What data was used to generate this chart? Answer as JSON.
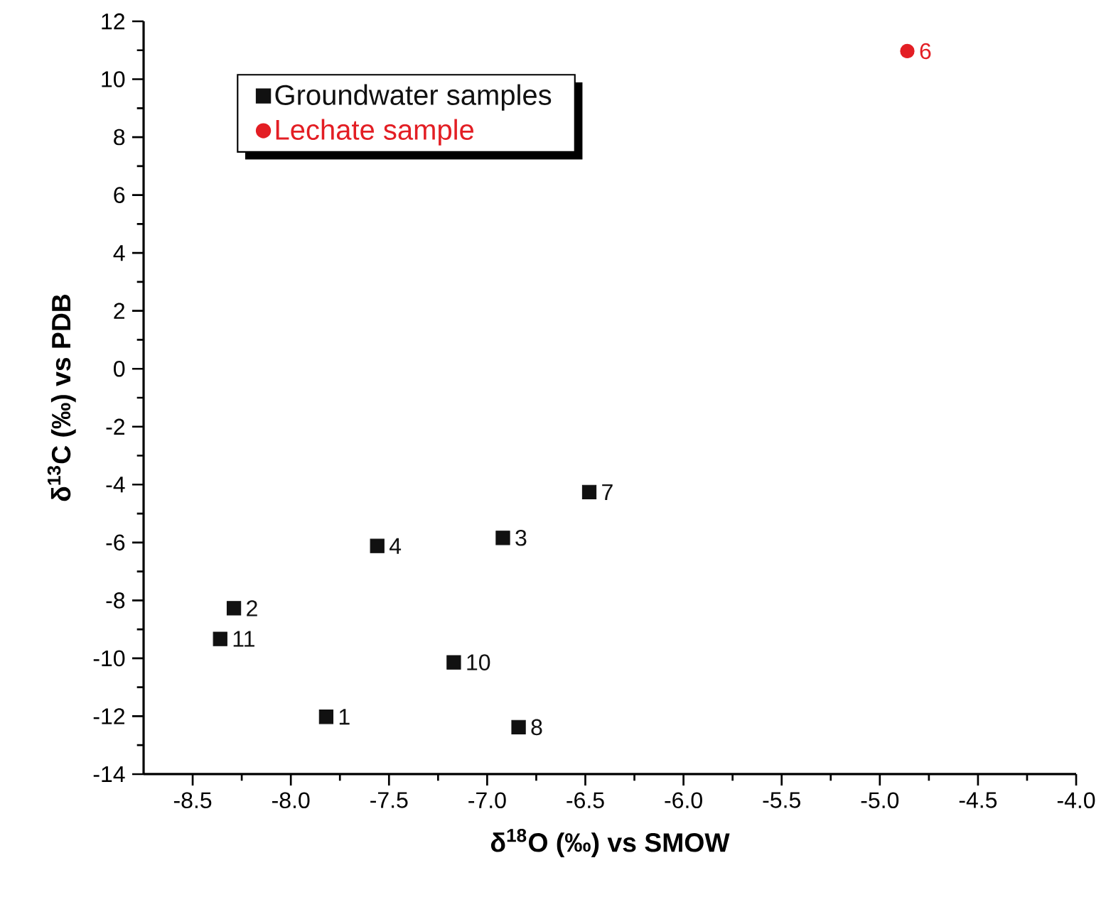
{
  "chart_data": {
    "type": "scatter",
    "xlabel": "δ$^{18}$O (‰) vs SMOW",
    "ylabel": "δ$^{13}$C (‰) vs  PDB",
    "series": [
      {
        "name": "Groundwater samples",
        "color": "#111111",
        "marker": "square",
        "x": [
          -7.82,
          -8.29,
          -6.92,
          -7.56,
          -6.48,
          -6.84,
          -7.17,
          -8.36
        ],
        "values": [
          -12.02,
          -8.27,
          -5.84,
          -6.12,
          -4.26,
          -12.38,
          -10.14,
          -9.33
        ]
      },
      {
        "name": "Lechate sample",
        "color": "#e31e24",
        "marker": "circle",
        "x": [
          -4.86
        ],
        "values": [
          10.97
        ]
      }
    ],
    "annotations": [
      {
        "text": "1",
        "x": -7.82,
        "y": -12.02
      },
      {
        "text": "2",
        "x": -8.29,
        "y": -8.27
      },
      {
        "text": "3",
        "x": -6.92,
        "y": -5.84
      },
      {
        "text": "4",
        "x": -7.56,
        "y": -6.12
      },
      {
        "text": "6",
        "x": -4.86,
        "y": 10.97
      },
      {
        "text": "7",
        "x": -6.48,
        "y": -4.26
      },
      {
        "text": "8",
        "x": -6.84,
        "y": -12.38
      },
      {
        "text": "10",
        "x": -7.17,
        "y": -10.14
      },
      {
        "text": "11",
        "x": -8.36,
        "y": -9.33
      }
    ],
    "xlim": [
      -8.75,
      -4.0
    ],
    "xticks": [
      -8.5,
      {
        "value": -8.0,
        "label": "-8.0"
      },
      -7.5,
      {
        "value": -7.0,
        "label": "-7.0"
      },
      -6.5,
      {
        "value": -6.0,
        "label": "-6.0"
      },
      -5.5,
      {
        "value": -5.0,
        "label": "-5.0"
      },
      -4.5,
      {
        "value": -4.0,
        "label": "-4.0"
      }
    ],
    "ylim": [
      -14,
      12
    ],
    "yticks": [
      -14,
      -12,
      -10,
      -8,
      -6,
      -4,
      -2,
      0,
      2,
      4,
      6,
      8,
      10,
      12
    ],
    "legend": "top left",
    "grid": false
  }
}
